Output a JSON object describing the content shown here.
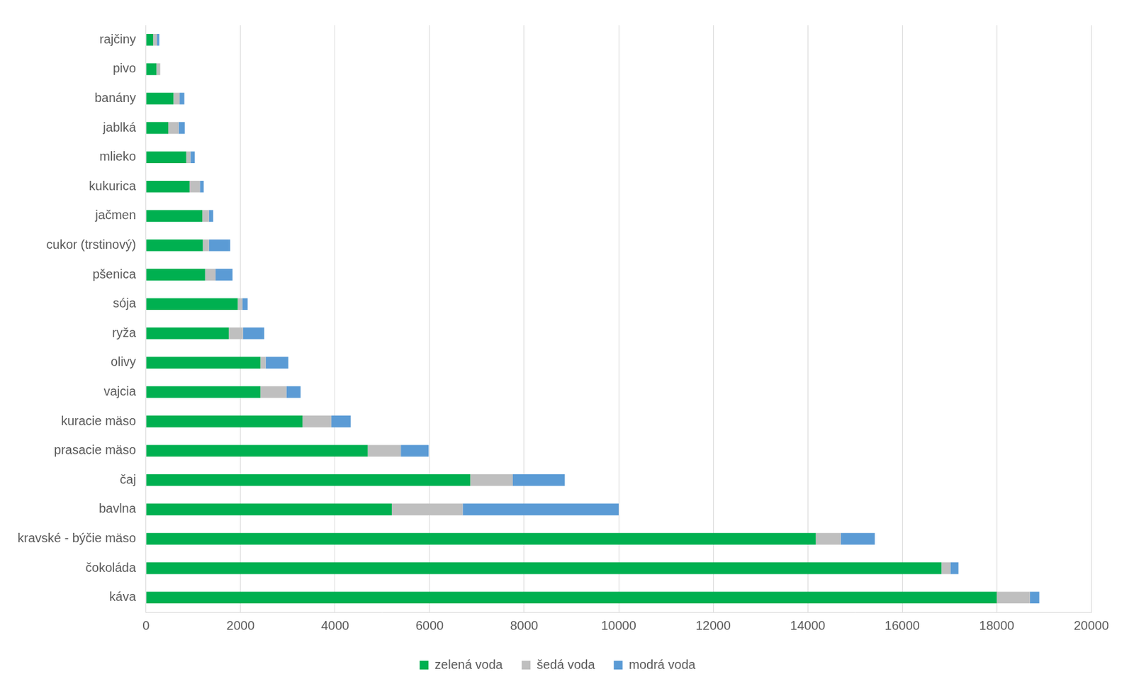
{
  "chart_data": {
    "type": "bar",
    "orientation": "horizontal",
    "stacked": true,
    "grid": true,
    "legend": "bottom",
    "categories": [
      "rajčiny",
      "pivo",
      "banány",
      "jablká",
      "mlieko",
      "kukurica",
      "jačmen",
      "cukor (trstinový)",
      "pšenica",
      "sója",
      "ryža",
      "olivy",
      "vajcia",
      "kuracie mäso",
      "prasacie mäso",
      "čaj",
      "bavlna",
      "kravské - býčie mäso",
      "čokoláda",
      "káva"
    ],
    "series": [
      {
        "name": "zelená voda",
        "color": "#00b050",
        "values": [
          150,
          220,
          580,
          470,
          850,
          920,
          1190,
          1200,
          1250,
          1940,
          1750,
          2420,
          2420,
          3310,
          4690,
          6860,
          5200,
          14170,
          16830,
          18000
        ]
      },
      {
        "name": "šedá voda",
        "color": "#bfbfbf",
        "values": [
          80,
          80,
          130,
          220,
          90,
          220,
          140,
          130,
          220,
          100,
          300,
          110,
          550,
          610,
          700,
          900,
          1500,
          530,
          190,
          700
        ]
      },
      {
        "name": "modrá voda",
        "color": "#5b9bd5",
        "values": [
          50,
          0,
          100,
          130,
          90,
          80,
          90,
          450,
          360,
          110,
          450,
          480,
          300,
          410,
          590,
          1100,
          3300,
          720,
          170,
          200
        ]
      }
    ],
    "xlim": [
      0,
      20000
    ],
    "xticks": [
      0,
      2000,
      4000,
      6000,
      8000,
      10000,
      12000,
      14000,
      16000,
      18000,
      20000
    ]
  }
}
